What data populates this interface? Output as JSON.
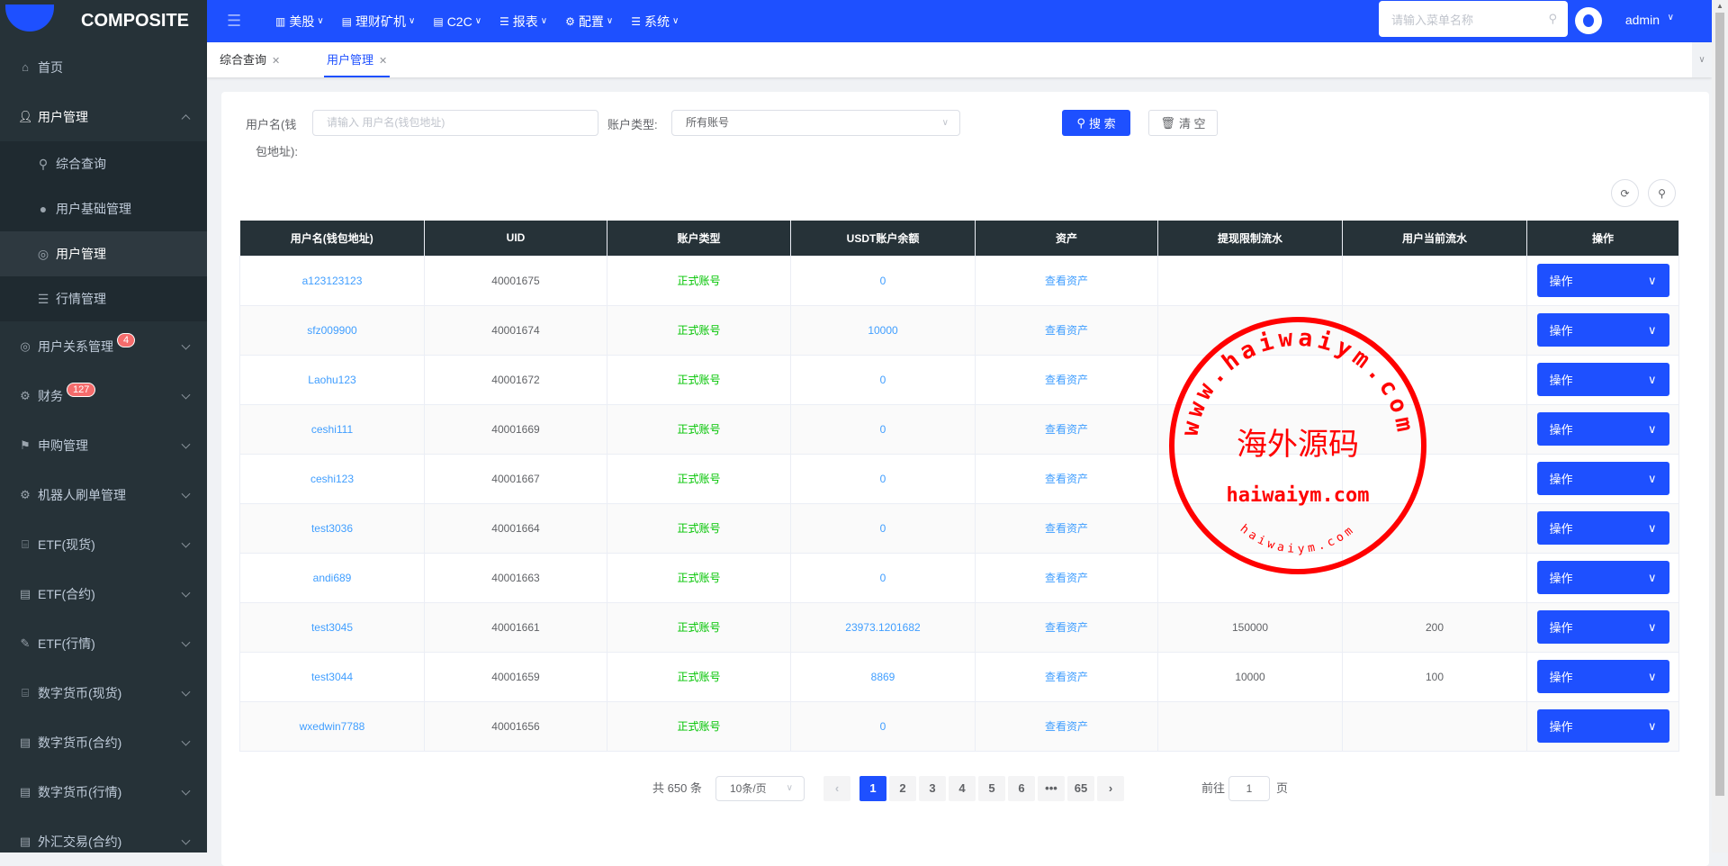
{
  "app": {
    "name": "COMPOSITE"
  },
  "colors": {
    "primary": "#1e50ff",
    "sidebar": "#263238",
    "link": "#409eff",
    "status_green": "#00c400",
    "badge": "#f56c6c",
    "stamp": "#ff0000"
  },
  "sidebar": {
    "home": {
      "label": "首页",
      "icon": "home-icon"
    },
    "user_mgmt": {
      "label": "用户管理",
      "icon": "user-icon",
      "children": [
        {
          "label": "综合查询",
          "icon": "search-icon"
        },
        {
          "label": "用户基础管理",
          "icon": "user-icon"
        },
        {
          "label": "用户管理",
          "icon": "user-circle-icon",
          "active": true
        },
        {
          "label": "行情管理",
          "icon": "list-icon"
        }
      ]
    },
    "items": [
      {
        "label": "用户关系管理",
        "icon": "user-circle-icon",
        "badge": "4"
      },
      {
        "label": "财务",
        "icon": "gear-icon",
        "badge": "127"
      },
      {
        "label": "申购管理",
        "icon": "signpost-icon"
      },
      {
        "label": "机器人刷单管理",
        "icon": "gear-icon"
      },
      {
        "label": "ETF(现货)",
        "icon": "shop-icon"
      },
      {
        "label": "ETF(合约)",
        "icon": "document-icon"
      },
      {
        "label": "ETF(行情)",
        "icon": "edit-icon"
      },
      {
        "label": "数字货币(现货)",
        "icon": "shop-icon"
      },
      {
        "label": "数字货币(合约)",
        "icon": "document-icon"
      },
      {
        "label": "数字货币(行情)",
        "icon": "document-icon"
      },
      {
        "label": "外汇交易(合约)",
        "icon": "document-icon"
      }
    ]
  },
  "topnav": {
    "items": [
      {
        "label": "美股",
        "icon": "bar-chart-icon"
      },
      {
        "label": "理财矿机",
        "icon": "document-icon"
      },
      {
        "label": "C2C",
        "icon": "document-icon"
      },
      {
        "label": "报表",
        "icon": "list-icon"
      },
      {
        "label": "配置",
        "icon": "gear-icon"
      },
      {
        "label": "系统",
        "icon": "list-icon"
      }
    ],
    "search_placeholder": "请输入菜单名称",
    "user": "admin"
  },
  "tabs": [
    {
      "label": "综合查询",
      "active": false
    },
    {
      "label": "用户管理",
      "active": true
    }
  ],
  "filters": {
    "username_label_1": "用户名(钱",
    "username_label_2": "包地址):",
    "username_placeholder": "请输入 用户名(钱包地址)",
    "type_label": "账户类型:",
    "type_value": "所有账号",
    "search_label": "搜 索",
    "clear_label": "清 空"
  },
  "table": {
    "columns": [
      "用户名(钱包地址)",
      "UID",
      "账户类型",
      "USDT账户余额",
      "资产",
      "提现限制流水",
      "用户当前流水",
      "操作"
    ],
    "rows": [
      {
        "username": "a123123123",
        "uid": "40001675",
        "type": "正式账号",
        "usdt": "0",
        "asset": "查看资产",
        "limit": "",
        "flow": "",
        "op": "操作"
      },
      {
        "username": "sfz009900",
        "uid": "40001674",
        "type": "正式账号",
        "usdt": "10000",
        "asset": "查看资产",
        "limit": "",
        "flow": "",
        "op": "操作"
      },
      {
        "username": "Laohu123",
        "uid": "40001672",
        "type": "正式账号",
        "usdt": "0",
        "asset": "查看资产",
        "limit": "",
        "flow": "",
        "op": "操作"
      },
      {
        "username": "ceshi111",
        "uid": "40001669",
        "type": "正式账号",
        "usdt": "0",
        "asset": "查看资产",
        "limit": "",
        "flow": "",
        "op": "操作"
      },
      {
        "username": "ceshi123",
        "uid": "40001667",
        "type": "正式账号",
        "usdt": "0",
        "asset": "查看资产",
        "limit": "",
        "flow": "",
        "op": "操作"
      },
      {
        "username": "test3036",
        "uid": "40001664",
        "type": "正式账号",
        "usdt": "0",
        "asset": "查看资产",
        "limit": "",
        "flow": "",
        "op": "操作"
      },
      {
        "username": "andi689",
        "uid": "40001663",
        "type": "正式账号",
        "usdt": "0",
        "asset": "查看资产",
        "limit": "",
        "flow": "",
        "op": "操作"
      },
      {
        "username": "test3045",
        "uid": "40001661",
        "type": "正式账号",
        "usdt": "23973.1201682",
        "asset": "查看资产",
        "limit": "150000",
        "flow": "200",
        "op": "操作"
      },
      {
        "username": "test3044",
        "uid": "40001659",
        "type": "正式账号",
        "usdt": "8869",
        "asset": "查看资产",
        "limit": "10000",
        "flow": "100",
        "op": "操作"
      },
      {
        "username": "wxedwin7788",
        "uid": "40001656",
        "type": "正式账号",
        "usdt": "0",
        "asset": "查看资产",
        "limit": "",
        "flow": "",
        "op": "操作"
      }
    ]
  },
  "pagination": {
    "total": "共 650 条",
    "page_size": "10条/页",
    "pages": [
      "1",
      "2",
      "3",
      "4",
      "5",
      "6",
      "•••",
      "65"
    ],
    "current": "1",
    "goto_label": "前往",
    "goto_value": "1",
    "page_suffix": "页"
  },
  "watermark": {
    "outer": "www.haiwaiym.com",
    "center": "海外源码",
    "line2": "haiwaiym.com",
    "bottom": "haiwaiym.com"
  }
}
